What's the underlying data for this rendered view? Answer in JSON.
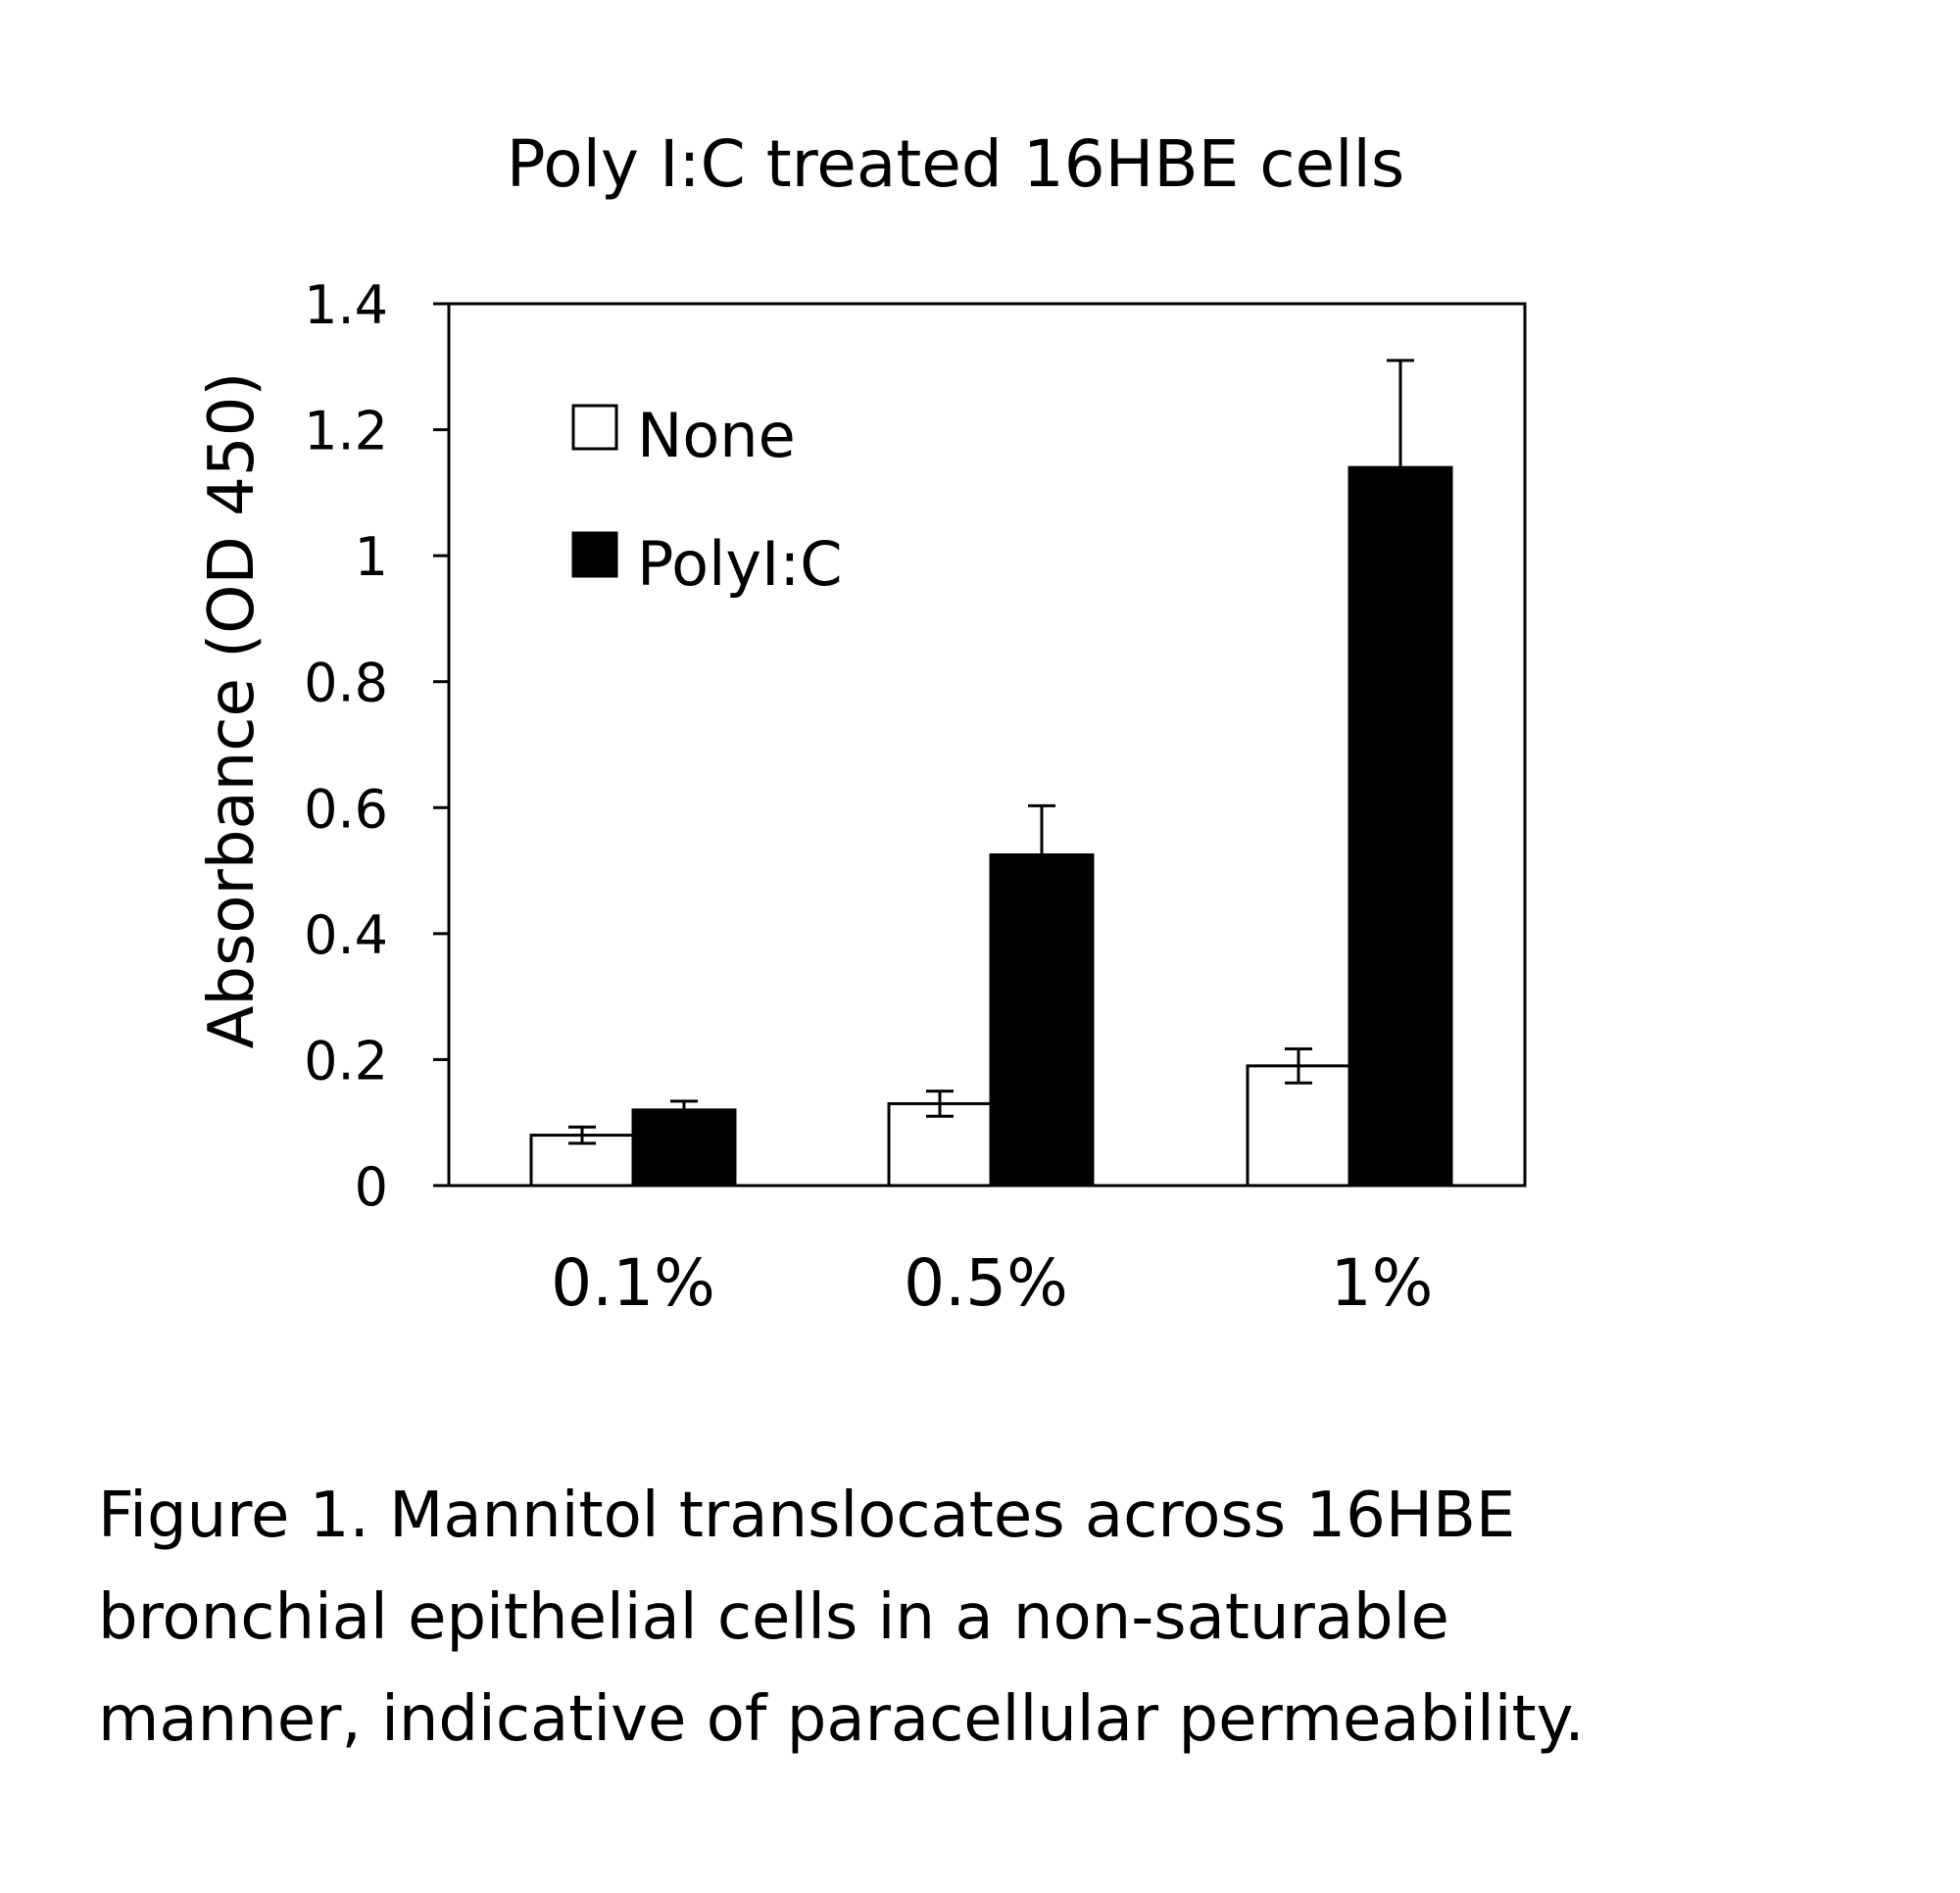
{
  "chart_data": {
    "type": "bar",
    "title": "Poly I:C treated 16HBE cells",
    "ylabel": "Absorbance (OD 450)",
    "xlabel": "",
    "categories": [
      "0.1%",
      "0.5%",
      "1%"
    ],
    "ylim": [
      0,
      1.4
    ],
    "yticks": [
      "0",
      "0.2",
      "0.4",
      "0.6",
      "0.8",
      "1",
      "1.2",
      "1.4"
    ],
    "grid": false,
    "legend_position": "top-left",
    "series": [
      {
        "name": "None",
        "values": [
          0.08,
          0.13,
          0.19
        ],
        "errors": [
          0.013,
          0.02,
          0.027
        ],
        "fill": "#ffffff",
        "stroke": "#000000"
      },
      {
        "name": "PolyI:C",
        "values": [
          0.12,
          0.525,
          1.14
        ],
        "errors": [
          0.014,
          0.078,
          0.17
        ],
        "fill": "#000000",
        "stroke": "#000000"
      }
    ]
  },
  "caption": "Figure 1.  Mannitol translocates across 16HBE\nbronchial epithelial cells in a non-saturable\nmanner, indicative of paracellular permeability."
}
